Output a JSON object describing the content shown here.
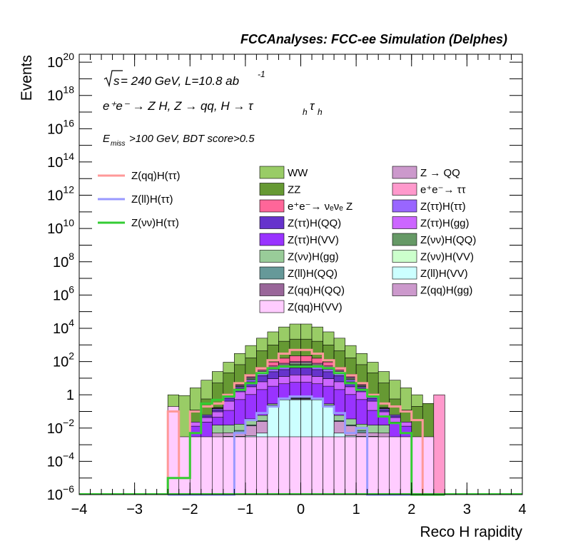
{
  "chart_data": {
    "type": "histogram",
    "title": "FCCAnalyses: FCC-ee Simulation (Delphes)",
    "xlabel": "Reco H rapidity",
    "ylabel": "Events",
    "xlim": [
      -4,
      4
    ],
    "ylim": [
      1e-06,
      3e+20
    ],
    "yscale": "log",
    "x_ticks": [
      -4,
      -3,
      -2,
      -1,
      0,
      1,
      2,
      3,
      4
    ],
    "x_tick_labels": [
      "−4",
      "−3",
      "−2",
      "−1",
      "0",
      "1",
      "2",
      "3",
      "4"
    ],
    "y_ticks": [
      1e-06,
      0.0001,
      0.01,
      1,
      100,
      10000.0,
      1000000.0,
      100000000.0,
      10000000000.0,
      1000000000000.0,
      100000000000000.0,
      1e+16,
      1e+18,
      1e+20
    ],
    "y_tick_labels": [
      {
        "base": "10",
        "exp": "−6"
      },
      {
        "base": "10",
        "exp": "−4"
      },
      {
        "base": "10",
        "exp": "−2"
      },
      {
        "base": "1",
        "exp": ""
      },
      {
        "base": "10",
        "exp": "2"
      },
      {
        "base": "10",
        "exp": "4"
      },
      {
        "base": "10",
        "exp": "6"
      },
      {
        "base": "10",
        "exp": "8"
      },
      {
        "base": "10",
        "exp": "10"
      },
      {
        "base": "10",
        "exp": "12"
      },
      {
        "base": "10",
        "exp": "14"
      },
      {
        "base": "10",
        "exp": "16"
      },
      {
        "base": "10",
        "exp": "18"
      },
      {
        "base": "10",
        "exp": "20"
      }
    ],
    "annotations": {
      "sqrt_s": "s",
      "energy_lumi": " = 240 GeV, L=10.8 ab",
      "lumi_exp": "-1",
      "process": "e⁺e⁻ → Z H, Z → qq, H → τ",
      "process_sub": "h",
      "process_tail": "τ",
      "process_sub2": "h",
      "cuts_pre": "E",
      "cuts_sub": "miss",
      "cuts_post": ">100 GeV, BDT score>0.5"
    },
    "bin_edges": [
      -2.4,
      -2.2,
      -2.0,
      -1.8,
      -1.6,
      -1.4,
      -1.2,
      -1.0,
      -0.8,
      -0.6,
      -0.4,
      -0.2,
      0.0,
      0.2,
      0.4,
      0.6,
      0.8,
      1.0,
      1.2,
      1.4,
      1.6,
      1.8,
      2.0,
      2.2,
      2.4,
      2.6
    ],
    "stack_totals": [
      1,
      1,
      3,
      8,
      25,
      90,
      300,
      900,
      2500,
      6000,
      12000,
      18000,
      18000,
      12000,
      6000,
      2500,
      900,
      300,
      90,
      25,
      8,
      3,
      1,
      0.3,
      1
    ],
    "stacked_series": [
      {
        "name": "Z(qq)H(VV)",
        "color": "#ffccff",
        "values": [
          0.2,
          0.003,
          0.003,
          0.003,
          0.003,
          0.003,
          0.003,
          0.003,
          0.003,
          0.003,
          0.003,
          0.003,
          0.003,
          0.003,
          0.003,
          0.003,
          0.003,
          0.003,
          0.003,
          0.003,
          0.003,
          0.003,
          0.003,
          0.003,
          0
        ]
      },
      {
        "name": "Z(ll)H(VV)",
        "color": "#ccffff",
        "values": [
          0,
          0,
          0,
          0,
          0,
          0.0002,
          0.0002,
          0.0005,
          0.002,
          0.2,
          0.5,
          0.5,
          0.5,
          0.5,
          0.2,
          0.002,
          0.0005,
          0.0002,
          0.0002,
          0,
          0,
          0,
          0,
          0,
          0
        ]
      },
      {
        "name": "Z(qq)H(gg)",
        "color": "#cc99cc",
        "values": [
          0,
          0,
          0,
          0,
          0.002,
          0.002,
          0.002,
          0.01,
          0.02,
          0.03,
          0.04,
          0.05,
          0.05,
          0.04,
          0.03,
          0.02,
          0.01,
          0.002,
          0.002,
          0.002,
          0,
          0,
          0,
          0,
          0
        ]
      },
      {
        "name": "Z(ll)H(QQ)",
        "color": "#669999",
        "values": [
          0,
          0,
          0,
          0,
          0,
          0,
          0.002,
          0.002,
          0.003,
          0.005,
          0.01,
          0.05,
          0.05,
          0.01,
          0.005,
          0.003,
          0.002,
          0.002,
          0,
          0,
          0,
          0,
          0,
          0,
          0
        ]
      },
      {
        "name": "Z(νν)H(gg)",
        "color": "#99cc99",
        "values": [
          0,
          0,
          0,
          0,
          0.01,
          0.01,
          0.01,
          0.02,
          0.03,
          0.05,
          0.05,
          0.05,
          0.05,
          0.05,
          0.05,
          0.03,
          0.02,
          0.01,
          0.01,
          0.01,
          0,
          0,
          0,
          0,
          0
        ]
      },
      {
        "name": "Z(ττ)H(VV)",
        "color": "#9933ff",
        "values": [
          0,
          0,
          0.01,
          0.02,
          0.03,
          0.1,
          0.5,
          1,
          2,
          3,
          4,
          5,
          5,
          4,
          3,
          2,
          1,
          0.5,
          0.1,
          0.03,
          0.02,
          0.01,
          0,
          0,
          0
        ]
      },
      {
        "name": "Z(ττ)H(gg)",
        "color": "#cc66ff",
        "values": [
          0,
          0,
          0.01,
          0.02,
          0.05,
          0.3,
          1,
          2,
          4,
          6,
          8,
          10,
          10,
          8,
          6,
          4,
          2,
          1,
          0.3,
          0.05,
          0.02,
          0.01,
          0,
          0,
          0
        ]
      },
      {
        "name": "Z(ττ)H(QQ)",
        "color": "#6633cc",
        "values": [
          0,
          0,
          0,
          0.01,
          0.03,
          0.2,
          1,
          3,
          8,
          15,
          20,
          25,
          25,
          20,
          15,
          8,
          3,
          1,
          0.2,
          0.03,
          0.01,
          0,
          0,
          0,
          0
        ]
      },
      {
        "name": "Z(ττ)H(ττ)",
        "color": "#9966ff",
        "values": [
          0,
          0,
          0,
          0.01,
          0.02,
          0.1,
          0.5,
          2,
          5,
          10,
          15,
          20,
          20,
          15,
          10,
          5,
          2,
          0.5,
          0.1,
          0.02,
          0.01,
          0,
          0,
          0,
          0
        ]
      },
      {
        "name": "Z(νν)H(QQ)",
        "color": "#669966",
        "values": [
          0,
          0,
          0,
          0,
          0.01,
          0.05,
          0.3,
          1,
          3,
          5,
          8,
          10,
          10,
          8,
          5,
          3,
          1,
          0.3,
          0.05,
          0.01,
          0,
          0,
          0,
          0,
          0
        ]
      },
      {
        "name": "Z(νν)H(VV)",
        "color": "#ccffcc",
        "values": [
          0,
          0,
          0,
          0,
          0.01,
          0.05,
          0.3,
          1,
          3,
          5,
          8,
          10,
          10,
          8,
          5,
          3,
          1,
          0.3,
          0.05,
          0.01,
          0,
          0,
          0,
          0,
          0
        ]
      },
      {
        "name": "Z(qq)H(QQ)",
        "color": "#996699",
        "values": [
          0,
          0,
          0,
          0,
          0.01,
          0.1,
          0.5,
          2,
          5,
          10,
          15,
          20,
          20,
          15,
          10,
          5,
          2,
          0.5,
          0.1,
          0.01,
          0,
          0,
          0,
          0,
          0
        ]
      },
      {
        "name": "e⁺e⁻→ νₑνₑ Z",
        "color": "#ff6699",
        "values": [
          0,
          0,
          0,
          0,
          0,
          0.2,
          1,
          5,
          15,
          40,
          80,
          120,
          120,
          80,
          40,
          15,
          5,
          1,
          0.2,
          0,
          0,
          0,
          0,
          0,
          0
        ]
      },
      {
        "name": "e⁺e⁻→ ττ",
        "color": "#ff99cc",
        "values": [
          0,
          0,
          0,
          0,
          0,
          0,
          0,
          0,
          0,
          0,
          0,
          0,
          0,
          0,
          0,
          0,
          0,
          0,
          0,
          0,
          0,
          0,
          0,
          0,
          1
        ]
      },
      {
        "name": "Z → QQ",
        "color": "#cc99cc",
        "values": [
          0,
          0,
          0,
          0,
          0,
          0,
          0,
          0,
          0,
          0,
          0,
          0,
          0,
          0,
          0,
          0,
          0,
          0,
          0,
          0,
          0,
          0,
          0,
          0,
          0
        ]
      },
      {
        "name": "ZZ",
        "color": "#669933",
        "values": [
          0,
          0,
          0.1,
          0.5,
          5,
          20,
          60,
          150,
          400,
          900,
          1500,
          2000,
          2000,
          1500,
          900,
          400,
          150,
          60,
          20,
          5,
          0.5,
          0.1,
          0.2,
          0.3,
          0
        ]
      },
      {
        "name": "WW",
        "color": "#99cc66",
        "values": [
          0.8,
          0.9,
          2.5,
          7,
          20,
          70,
          240,
          750,
          2100,
          5100,
          10300,
          15800,
          15800,
          10300,
          5100,
          2100,
          750,
          240,
          70,
          20,
          7,
          2.5,
          0.8,
          0,
          0
        ]
      }
    ],
    "line_series": [
      {
        "name": "Z(qq)H(ττ)",
        "color": "#ff9999",
        "values": [
          0.1,
          1e-05,
          0.1,
          0.2,
          0.3,
          1,
          5,
          15,
          40,
          120,
          300,
          500,
          500,
          300,
          120,
          40,
          15,
          5,
          1,
          0.3,
          0.2,
          0.1,
          0.03,
          0,
          0
        ]
      },
      {
        "name": "Z(ll)H(ττ)",
        "color": "#9999ff",
        "values": [
          0,
          0,
          0,
          0,
          0,
          0,
          0.005,
          0.03,
          0.08,
          0.2,
          0.6,
          0.8,
          0.8,
          0.6,
          0.2,
          0.08,
          0.005,
          0.01,
          0,
          0,
          0,
          0,
          0,
          0,
          0
        ]
      },
      {
        "name": "Z(νν)H(ττ)",
        "color": "#33cc33",
        "values": [
          1e-05,
          1e-05,
          0.005,
          0.3,
          0.5,
          0.8,
          2,
          5,
          20,
          40,
          50,
          50,
          50,
          50,
          40,
          20,
          5,
          2,
          0.8,
          0.05,
          0.02,
          0.005,
          0,
          0,
          0
        ]
      }
    ],
    "legend_lines": [
      {
        "name": "Z(qq)H(ττ)",
        "color": "#ff9999"
      },
      {
        "name": "Z(ll)H(ττ)",
        "color": "#9999ff"
      },
      {
        "name": "Z(νν)H(ττ)",
        "color": "#33cc33"
      }
    ],
    "legend_col1": [
      {
        "name": "WW",
        "color": "#99cc66"
      },
      {
        "name": "ZZ",
        "color": "#669933"
      },
      {
        "name": "e⁺e⁻→ νₑνₑ Z",
        "color": "#ff6699"
      },
      {
        "name": "Z(ττ)H(QQ)",
        "color": "#6633cc"
      },
      {
        "name": "Z(ττ)H(VV)",
        "color": "#9933ff"
      },
      {
        "name": "Z(νν)H(gg)",
        "color": "#99cc99"
      },
      {
        "name": "Z(ll)H(QQ)",
        "color": "#669999"
      },
      {
        "name": "Z(qq)H(QQ)",
        "color": "#996699"
      },
      {
        "name": "Z(qq)H(VV)",
        "color": "#ffccff"
      }
    ],
    "legend_col2": [
      {
        "name": "Z → QQ",
        "color": "#cc99cc"
      },
      {
        "name": "e⁺e⁻→ ττ",
        "color": "#ff99cc"
      },
      {
        "name": "Z(ττ)H(ττ)",
        "color": "#9966ff"
      },
      {
        "name": "Z(ττ)H(gg)",
        "color": "#cc66ff"
      },
      {
        "name": "Z(νν)H(QQ)",
        "color": "#669966"
      },
      {
        "name": "Z(νν)H(VV)",
        "color": "#ccffcc"
      },
      {
        "name": "Z(ll)H(VV)",
        "color": "#ccffff"
      },
      {
        "name": "Z(qq)H(gg)",
        "color": "#cc99cc"
      }
    ],
    "grid": false,
    "legend_position": "top"
  }
}
